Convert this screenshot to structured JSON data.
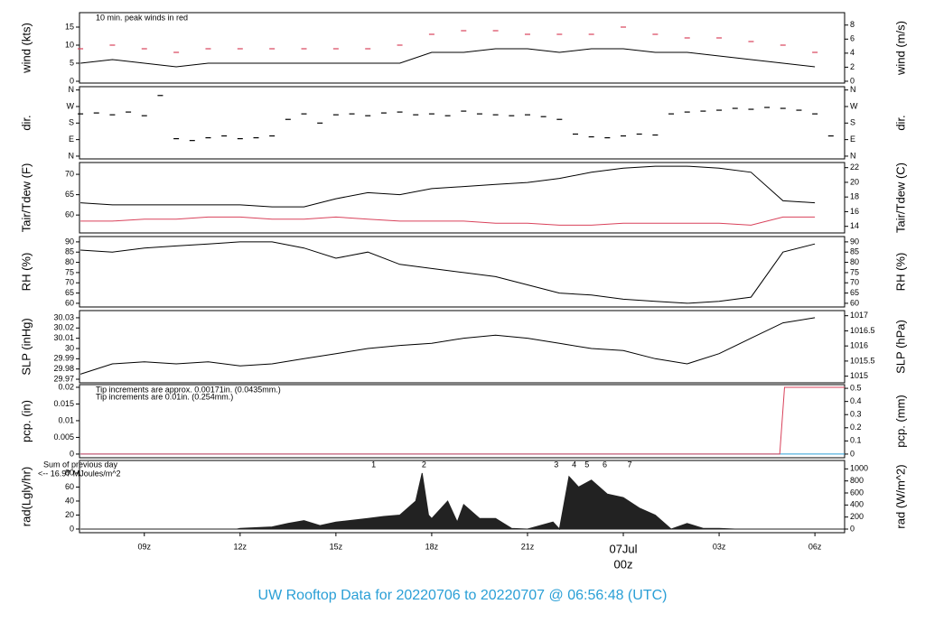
{
  "title": "UW Rooftop Data for 20220706  to  20220707 @ 06:56:48  (UTC)",
  "chart_data": [
    {
      "type": "line",
      "ylabel": "wind (kts)",
      "y2label": "wind (m/s)",
      "notes": [
        {
          "text": "10 min. peak winds in red",
          "color": "#d9425b"
        }
      ],
      "xlim": [
        6.97,
        30.93
      ],
      "ylim": [
        -0.5,
        19
      ],
      "yticks": [
        0,
        5,
        10,
        15
      ],
      "y2lim": [
        -0.26,
        9.77
      ],
      "y2ticks": [
        0,
        2,
        4,
        6,
        8
      ],
      "x": [
        7,
        8,
        9,
        10,
        11,
        12,
        13,
        14,
        15,
        16,
        17,
        18,
        19,
        20,
        21,
        22,
        23,
        24,
        25,
        26,
        27,
        28,
        29,
        30
      ],
      "series": [
        {
          "color": "#000000",
          "values": [
            5,
            6,
            5,
            4,
            5,
            5,
            5,
            5,
            5,
            5,
            5,
            8,
            8,
            9,
            9,
            8,
            9,
            9,
            8,
            8,
            7,
            6,
            5,
            4
          ]
        },
        {
          "color": "#d9425b",
          "mode": "markers",
          "values": [
            9,
            10,
            9,
            8,
            9,
            9,
            9,
            9,
            9,
            9,
            10,
            13,
            14,
            14,
            13,
            13,
            13,
            15,
            13,
            12,
            12,
            11,
            10,
            8
          ]
        }
      ]
    },
    {
      "type": "scatter",
      "ylabel": "dir.",
      "y2label": "dir.",
      "xlim": [
        6.97,
        30.93
      ],
      "ylim": [
        -15,
        378
      ],
      "yticks": [
        {
          "value": 0,
          "label": "N"
        },
        {
          "value": 90,
          "label": "E"
        },
        {
          "value": 180,
          "label": "S"
        },
        {
          "value": 270,
          "label": "W"
        },
        {
          "value": 360,
          "label": "N"
        }
      ],
      "y2lim": [
        -15,
        378
      ],
      "y2ticks": [
        {
          "value": 0,
          "label": "N"
        },
        {
          "value": 90,
          "label": "E"
        },
        {
          "value": 180,
          "label": "S"
        },
        {
          "value": 270,
          "label": "W"
        },
        {
          "value": 360,
          "label": "N"
        }
      ],
      "x": [
        7,
        7.5,
        8,
        8.5,
        9,
        9.5,
        10,
        10.5,
        11,
        11.5,
        12,
        12.5,
        13,
        13.5,
        14,
        14.5,
        15,
        15.5,
        16,
        16.5,
        17,
        17.5,
        18,
        18.5,
        19,
        19.5,
        20,
        20.5,
        21,
        21.5,
        22,
        22.5,
        23,
        23.5,
        24,
        24.5,
        25,
        25.5,
        26,
        26.5,
        27,
        27.5,
        28,
        28.5,
        29,
        29.5,
        30,
        30.5
      ],
      "series": [
        {
          "color": "#000000",
          "values": [
            230,
            235,
            225,
            240,
            220,
            330,
            95,
            85,
            100,
            110,
            95,
            100,
            110,
            200,
            230,
            180,
            225,
            230,
            220,
            235,
            240,
            225,
            230,
            220,
            245,
            230,
            225,
            220,
            225,
            215,
            200,
            120,
            105,
            100,
            110,
            120,
            115,
            230,
            240,
            245,
            250,
            260,
            255,
            265,
            260,
            250,
            230,
            110
          ]
        }
      ]
    },
    {
      "type": "line",
      "ylabel": "Tair/Tdew (F)",
      "y2label": "Tair/Tdew (C)",
      "xlim": [
        6.97,
        30.93
      ],
      "ylim": [
        55.6,
        72.9
      ],
      "yticks": [
        60,
        65,
        70
      ],
      "y2lim": [
        13.1,
        22.7
      ],
      "y2ticks": [
        14,
        16,
        18,
        20,
        22
      ],
      "x": [
        7,
        8,
        9,
        10,
        11,
        12,
        13,
        14,
        15,
        16,
        17,
        18,
        19,
        20,
        21,
        22,
        23,
        24,
        25,
        26,
        27,
        28,
        29,
        30
      ],
      "series": [
        {
          "color": "#000000",
          "values": [
            63,
            62.5,
            62.5,
            62.5,
            62.5,
            62.5,
            62,
            62,
            64,
            65.5,
            65,
            66.5,
            67,
            67.5,
            68,
            69,
            70.5,
            71.5,
            72,
            72,
            71.5,
            70.5,
            63.5,
            63
          ]
        },
        {
          "color": "#d9425b",
          "values": [
            58.5,
            58.5,
            59,
            59,
            59.5,
            59.5,
            59,
            59,
            59.5,
            59,
            58.5,
            58.5,
            58.5,
            58,
            58,
            57.5,
            57.5,
            58,
            58,
            58,
            58,
            57.5,
            59.5,
            59.5
          ]
        }
      ]
    },
    {
      "type": "line",
      "ylabel": "RH (%)",
      "y2label": "RH (%)",
      "xlim": [
        6.97,
        30.93
      ],
      "ylim": [
        58.2,
        92.6
      ],
      "yticks": [
        60,
        65,
        70,
        75,
        80,
        85,
        90
      ],
      "y2lim": [
        58.2,
        92.6
      ],
      "y2ticks": [
        60,
        65,
        70,
        75,
        80,
        85,
        90
      ],
      "x": [
        7,
        8,
        9,
        10,
        11,
        12,
        13,
        14,
        15,
        16,
        17,
        18,
        19,
        20,
        21,
        22,
        23,
        24,
        25,
        26,
        27,
        28,
        29,
        30
      ],
      "series": [
        {
          "color": "#000000",
          "values": [
            86,
            85,
            87,
            88,
            89,
            90,
            90,
            87,
            82,
            85,
            79,
            77,
            75,
            73,
            69,
            65,
            64,
            62,
            61,
            60,
            61,
            63,
            85,
            89
          ]
        }
      ]
    },
    {
      "type": "line",
      "ylabel": "SLP (inHg)",
      "y2label": "SLP (hPa)",
      "xlim": [
        6.97,
        30.93
      ],
      "ylim": [
        29.9665,
        30.037
      ],
      "yticks": [
        29.97,
        29.98,
        29.99,
        30,
        30.01,
        30.02,
        30.03
      ],
      "y2lim": [
        1014.78,
        1017.17
      ],
      "y2ticks": [
        1015,
        1015.5,
        1016,
        1016.5,
        1017
      ],
      "x": [
        7,
        8,
        9,
        10,
        11,
        12,
        13,
        14,
        15,
        16,
        17,
        18,
        19,
        20,
        21,
        22,
        23,
        24,
        25,
        26,
        27,
        28,
        29,
        30
      ],
      "series": [
        {
          "color": "#000000",
          "values": [
            29.975,
            29.985,
            29.987,
            29.985,
            29.987,
            29.983,
            29.985,
            29.99,
            29.995,
            30.0,
            30.003,
            30.005,
            30.01,
            30.013,
            30.01,
            30.005,
            30.0,
            29.998,
            29.99,
            29.985,
            29.995,
            30.01,
            30.025,
            30.03
          ]
        }
      ]
    },
    {
      "type": "line",
      "ylabel": "pcp. (in)",
      "y2label": "pcp. (mm)",
      "notes": [
        {
          "text": "Tip increments are approx. 0.00171in. (0.0435mm.)",
          "color": "#d9425b"
        },
        {
          "text": "Tip increments are 0.01in. (0.254mm.)",
          "color": "#2a9fd6"
        }
      ],
      "xlim": [
        6.97,
        30.93
      ],
      "ylim": [
        -0.0011,
        0.0208
      ],
      "yticks": [
        0.0,
        0.005,
        0.01,
        0.015,
        0.02
      ],
      "y2lim": [
        -0.0279,
        0.528
      ],
      "y2ticks": [
        0,
        0.1,
        0.2,
        0.3,
        0.4,
        0.5
      ],
      "x": [
        7,
        28.9,
        29.05,
        30.93
      ],
      "series": [
        {
          "color": "#2a9fd6",
          "values": [
            0,
            0,
            0,
            0
          ]
        },
        {
          "color": "#d9425b",
          "values": [
            0,
            0,
            0.02,
            0.02
          ]
        }
      ]
    },
    {
      "type": "area",
      "ylabel": "rad(Lgly/hr)",
      "y2label": "rad (W/m^2)",
      "side_notes": [
        {
          "text": "Sum of previous day",
          "color": "#9b30d9"
        },
        {
          "text": "<-- 16.97 MJoules/m^2",
          "color": "#9b30d9"
        }
      ],
      "markers": [
        {
          "x": 16.18,
          "label": "1"
        },
        {
          "x": 17.76,
          "label": "2"
        },
        {
          "x": 21.9,
          "label": "3"
        },
        {
          "x": 22.46,
          "label": "4"
        },
        {
          "x": 22.86,
          "label": "5"
        },
        {
          "x": 23.42,
          "label": "6"
        },
        {
          "x": 24.2,
          "label": "7"
        }
      ],
      "marker_color": "#9b30d9",
      "xlim": [
        6.97,
        30.93
      ],
      "ylim": [
        -5.2,
        98
      ],
      "yticks": [
        0,
        20,
        40,
        60,
        80
      ],
      "y2lim": [
        -60,
        1140
      ],
      "y2ticks": [
        0,
        200,
        400,
        600,
        800,
        1000
      ],
      "xticks": [
        {
          "value": 9,
          "label": "09z"
        },
        {
          "value": 12,
          "label": "12z"
        },
        {
          "value": 15,
          "label": "15z"
        },
        {
          "value": 18,
          "label": "18z"
        },
        {
          "value": 21,
          "label": "21z"
        },
        {
          "value": 24,
          "label": "00z"
        },
        {
          "value": 27,
          "label": "03z"
        },
        {
          "value": 30,
          "label": "06z"
        }
      ],
      "date_label": {
        "value": 24,
        "label": "07Jul"
      },
      "date_color": "#d9425b",
      "x": [
        7,
        11.9,
        12,
        13,
        13.5,
        14,
        14.5,
        15,
        16,
        16.5,
        17,
        17.5,
        17.7,
        17.9,
        18,
        18.5,
        18.8,
        19,
        19.5,
        20,
        20.5,
        21,
        21.8,
        22,
        22.3,
        22.6,
        23,
        23.5,
        24,
        24.5,
        25,
        25.5,
        26,
        26.5,
        27,
        27.5,
        28,
        30.93
      ],
      "series": [
        {
          "color": "#222222",
          "values": [
            0,
            0,
            1,
            3,
            8,
            12,
            5,
            10,
            15,
            18,
            20,
            40,
            80,
            20,
            15,
            40,
            10,
            35,
            15,
            15,
            1,
            0,
            10,
            0,
            75,
            60,
            70,
            50,
            45,
            30,
            20,
            0,
            8,
            1,
            1,
            0,
            0,
            0
          ]
        }
      ]
    }
  ]
}
